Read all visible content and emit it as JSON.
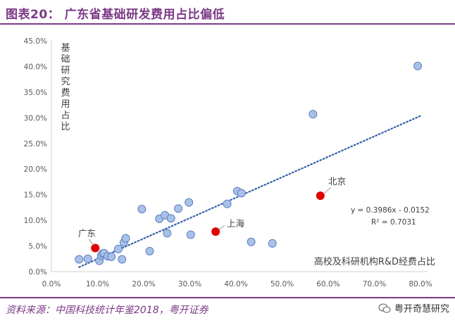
{
  "header": {
    "title": "图表20： 广东省基础研发费用占比偏低"
  },
  "footer": {
    "source": "资料来源：中国科技统计年鉴2018，粤开证券",
    "watermark": "粤开奇慧研究",
    "watermark_icon": "wechat-icon"
  },
  "colors": {
    "accent": "#7b3a86",
    "point_fill": "#a9c1e8",
    "point_stroke": "#5b7fbf",
    "highlight": "#e00000",
    "trend": "#2e5fa8"
  },
  "chart_data": {
    "type": "scatter",
    "title": "",
    "xlabel": "高校及科研机构R&D经费占比",
    "ylabel": "基础研究费用占比",
    "xlim": [
      0,
      0.8
    ],
    "ylim": [
      0,
      0.45
    ],
    "x_ticks": [
      "0.0%",
      "10.0%",
      "20.0%",
      "30.0%",
      "40.0%",
      "50.0%",
      "60.0%",
      "70.0%",
      "80.0%"
    ],
    "y_ticks": [
      "0.0%",
      "5.0%",
      "10.0%",
      "15.0%",
      "20.0%",
      "25.0%",
      "30.0%",
      "35.0%",
      "40.0%",
      "45.0%"
    ],
    "grid": false,
    "points": [
      {
        "x": 0.06,
        "y": 0.024
      },
      {
        "x": 0.079,
        "y": 0.025
      },
      {
        "x": 0.104,
        "y": 0.021
      },
      {
        "x": 0.108,
        "y": 0.031
      },
      {
        "x": 0.111,
        "y": 0.035
      },
      {
        "x": 0.114,
        "y": 0.036
      },
      {
        "x": 0.122,
        "y": 0.03
      },
      {
        "x": 0.13,
        "y": 0.029
      },
      {
        "x": 0.145,
        "y": 0.044
      },
      {
        "x": 0.153,
        "y": 0.024
      },
      {
        "x": 0.157,
        "y": 0.057
      },
      {
        "x": 0.161,
        "y": 0.065
      },
      {
        "x": 0.196,
        "y": 0.122
      },
      {
        "x": 0.213,
        "y": 0.04
      },
      {
        "x": 0.234,
        "y": 0.103
      },
      {
        "x": 0.246,
        "y": 0.11
      },
      {
        "x": 0.251,
        "y": 0.075
      },
      {
        "x": 0.259,
        "y": 0.104
      },
      {
        "x": 0.275,
        "y": 0.123
      },
      {
        "x": 0.298,
        "y": 0.135
      },
      {
        "x": 0.302,
        "y": 0.072
      },
      {
        "x": 0.381,
        "y": 0.132
      },
      {
        "x": 0.403,
        "y": 0.157
      },
      {
        "x": 0.412,
        "y": 0.153
      },
      {
        "x": 0.433,
        "y": 0.058
      },
      {
        "x": 0.479,
        "y": 0.055
      },
      {
        "x": 0.567,
        "y": 0.307
      },
      {
        "x": 0.794,
        "y": 0.401
      }
    ],
    "highlighted": [
      {
        "name": "广东",
        "x": 0.095,
        "y": 0.046
      },
      {
        "name": "上海",
        "x": 0.356,
        "y": 0.078
      },
      {
        "name": "北京",
        "x": 0.583,
        "y": 0.148
      }
    ],
    "trendline": {
      "slope": 0.3986,
      "intercept": -0.0152,
      "x_range": [
        0.06,
        0.8
      ],
      "equation": "y = 0.3986x  - 0.0152",
      "r2": "R² = 0.7031"
    }
  }
}
